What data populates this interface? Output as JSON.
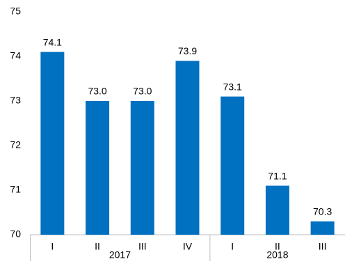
{
  "chart_data": {
    "type": "bar",
    "color": "#0070c0",
    "groups": [
      {
        "label": "2017",
        "categories": [
          "I",
          "II",
          "III",
          "IV"
        ],
        "values": [
          74.1,
          73.0,
          73.0,
          73.9
        ],
        "value_labels": [
          "74.1",
          "73.0",
          "73.0",
          "73.9"
        ]
      },
      {
        "label": "2018",
        "categories": [
          "I",
          "II",
          "III"
        ],
        "values": [
          73.1,
          71.1,
          70.3
        ],
        "value_labels": [
          "73.1",
          "71.1",
          "70.3"
        ]
      }
    ],
    "ylim": [
      70,
      75
    ],
    "yticks": [
      70,
      71,
      72,
      73,
      74,
      75
    ],
    "grid": false
  }
}
